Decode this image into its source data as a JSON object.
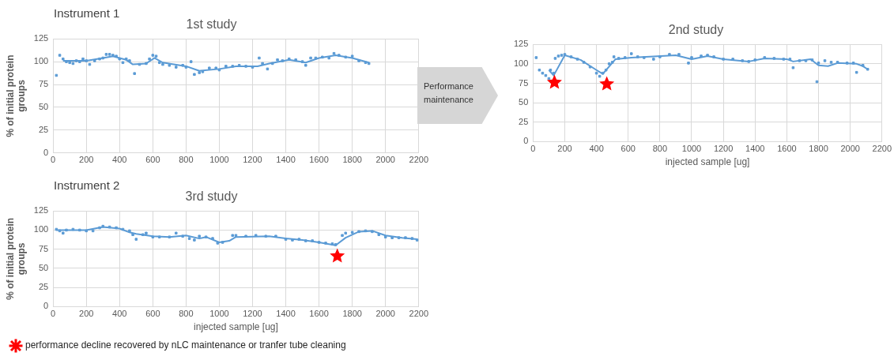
{
  "chart_data": [
    {
      "type": "scatter",
      "title": "1st study",
      "ylabel": "% of initial protein groups",
      "annotations": [
        "Instrument 1"
      ],
      "xlim": [
        0,
        2200
      ],
      "xticks": [
        0,
        200,
        400,
        600,
        800,
        1000,
        1200,
        1400,
        1600,
        1800,
        2000,
        2200
      ],
      "ylim": [
        0,
        125
      ],
      "yticks": [
        0,
        25,
        50,
        75,
        100,
        125
      ],
      "grid": true,
      "legend": false,
      "series": [
        {
          "type": "scatter",
          "color": "#5b9bd5",
          "marker": "square",
          "x": [
            20,
            40,
            60,
            80,
            100,
            120,
            140,
            160,
            180,
            200,
            220,
            250,
            280,
            300,
            320,
            340,
            360,
            380,
            400,
            420,
            440,
            460,
            490,
            520,
            560,
            580,
            600,
            620,
            640,
            660,
            700,
            740,
            780,
            800,
            830,
            850,
            880,
            900,
            940,
            980,
            1000,
            1040,
            1080,
            1120,
            1160,
            1200,
            1240,
            1260,
            1290,
            1320,
            1350,
            1380,
            1420,
            1460,
            1500,
            1520,
            1550,
            1580,
            1620,
            1660,
            1690,
            1720,
            1760,
            1800,
            1840,
            1880,
            1900
          ],
          "values": [
            85,
            107,
            103,
            100,
            99,
            98,
            101,
            100,
            103,
            101,
            97,
            101,
            103,
            104,
            108,
            108,
            107,
            106,
            103,
            99,
            103,
            101,
            87,
            97,
            98,
            103,
            107,
            106,
            99,
            97,
            96,
            94,
            96,
            94,
            100,
            86,
            88,
            89,
            93,
            93,
            91,
            95,
            95,
            96,
            95,
            94,
            104,
            98,
            92,
            98,
            102,
            101,
            103,
            102,
            100,
            96,
            104,
            104,
            105,
            104,
            109,
            107,
            105,
            106,
            101,
            99,
            98
          ]
        },
        {
          "type": "line",
          "color": "#5b9bd5",
          "marker": "none",
          "x": [
            60,
            200,
            300,
            360,
            440,
            480,
            560,
            610,
            660,
            800,
            880,
            1000,
            1100,
            1230,
            1300,
            1420,
            1520,
            1600,
            1700,
            1800,
            1900
          ],
          "values": [
            101,
            101,
            104,
            106,
            102,
            97,
            98,
            104,
            99,
            95,
            90,
            92,
            95,
            95,
            98,
            102,
            99,
            104,
            107,
            104,
            99
          ]
        }
      ]
    },
    {
      "type": "scatter",
      "title": "2nd study",
      "xlabel": "injected sample [ug]",
      "annotations": [
        "Performance maintenance"
      ],
      "xlim": [
        0,
        2200
      ],
      "xticks": [
        0,
        200,
        400,
        600,
        800,
        1000,
        1200,
        1400,
        1600,
        1800,
        2000,
        2200
      ],
      "ylim": [
        0,
        125
      ],
      "yticks": [
        0,
        25,
        50,
        75,
        100,
        125
      ],
      "grid": true,
      "legend": false,
      "series": [
        {
          "type": "scatter",
          "color": "#5b9bd5",
          "marker": "square",
          "x": [
            20,
            40,
            60,
            80,
            100,
            110,
            130,
            140,
            160,
            180,
            200,
            240,
            280,
            320,
            360,
            400,
            420,
            440,
            460,
            480,
            500,
            510,
            540,
            580,
            620,
            660,
            700,
            760,
            800,
            860,
            920,
            980,
            1000,
            1060,
            1100,
            1140,
            1200,
            1260,
            1320,
            1360,
            1400,
            1460,
            1520,
            1580,
            1620,
            1640,
            1680,
            1720,
            1760,
            1790,
            1800,
            1840,
            1880,
            1920,
            1980,
            2020,
            2040,
            2080,
            2110
          ],
          "values": [
            108,
            92,
            88,
            85,
            81,
            92,
            88,
            107,
            110,
            111,
            112,
            109,
            106,
            102,
            96,
            88,
            84,
            88,
            92,
            100,
            102,
            109,
            107,
            108,
            113,
            109,
            108,
            106,
            109,
            112,
            112,
            101,
            108,
            110,
            111,
            109,
            106,
            106,
            104,
            103,
            105,
            108,
            107,
            106,
            106,
            95,
            104,
            104,
            105,
            77,
            101,
            104,
            102,
            102,
            101,
            101,
            89,
            98,
            93
          ]
        },
        {
          "type": "line",
          "color": "#5b9bd5",
          "marker": "none",
          "x": [
            100,
            130,
            200,
            300,
            400,
            440,
            520,
            620,
            900,
            1000,
            1100,
            1200,
            1360,
            1460,
            1600,
            1640,
            1750,
            1800,
            1860,
            1920,
            2040,
            2080,
            2110
          ],
          "values": [
            92,
            85,
            111,
            105,
            92,
            87,
            106,
            108,
            111,
            106,
            110,
            106,
            103,
            107,
            106,
            103,
            106,
            98,
            97,
            101,
            100,
            97,
            93
          ]
        },
        {
          "type": "scatter",
          "color": "#ff0000",
          "marker": "star",
          "x": [
            135,
            465
          ],
          "values": [
            76,
            74
          ]
        }
      ]
    },
    {
      "type": "scatter",
      "title": "3rd study",
      "xlabel": "injected sample [ug]",
      "ylabel": "% of initial protein groups",
      "annotations": [
        "Instrument 2"
      ],
      "xlim": [
        0,
        2200
      ],
      "xticks": [
        0,
        200,
        400,
        600,
        800,
        1000,
        1200,
        1400,
        1600,
        1800,
        2000,
        2200
      ],
      "ylim": [
        0,
        125
      ],
      "yticks": [
        0,
        25,
        50,
        75,
        100,
        125
      ],
      "grid": true,
      "legend": "bottom",
      "series": [
        {
          "type": "scatter",
          "color": "#5b9bd5",
          "marker": "square",
          "x": [
            20,
            40,
            60,
            80,
            120,
            160,
            200,
            240,
            280,
            300,
            340,
            380,
            420,
            460,
            480,
            500,
            540,
            560,
            600,
            640,
            700,
            740,
            780,
            820,
            850,
            880,
            920,
            960,
            990,
            1020,
            1080,
            1100,
            1160,
            1220,
            1280,
            1340,
            1400,
            1440,
            1480,
            1520,
            1560,
            1600,
            1640,
            1680,
            1700,
            1740,
            1760,
            1800,
            1840,
            1880,
            1920,
            1960,
            2000,
            2040,
            2080,
            2120,
            2160,
            2190
          ],
          "values": [
            101,
            99,
            96,
            100,
            101,
            100,
            99,
            99,
            103,
            105,
            104,
            103,
            101,
            99,
            94,
            88,
            94,
            96,
            91,
            91,
            91,
            96,
            92,
            89,
            87,
            92,
            91,
            89,
            83,
            84,
            93,
            93,
            92,
            93,
            92,
            92,
            88,
            87,
            88,
            86,
            86,
            84,
            83,
            82,
            81,
            93,
            96,
            97,
            98,
            99,
            98,
            94,
            91,
            90,
            90,
            90,
            89,
            87
          ]
        },
        {
          "type": "line",
          "color": "#5b9bd5",
          "marker": "none",
          "x": [
            20,
            200,
            300,
            400,
            460,
            500,
            600,
            700,
            800,
            880,
            920,
            1000,
            1060,
            1100,
            1300,
            1400,
            1500,
            1600,
            1700,
            1760,
            1840,
            1920,
            2000,
            2100,
            2190
          ],
          "values": [
            100,
            100,
            104,
            102,
            97,
            95,
            92,
            91,
            93,
            89,
            91,
            84,
            86,
            91,
            92,
            89,
            87,
            84,
            80,
            90,
            98,
            99,
            93,
            90,
            88
          ]
        },
        {
          "type": "scatter",
          "name": "performance decline recovered by nLC maintenance or tranfer tube cleaning",
          "color": "#ff0000",
          "marker": "star",
          "x": [
            1710
          ],
          "values": [
            66
          ]
        }
      ]
    }
  ]
}
